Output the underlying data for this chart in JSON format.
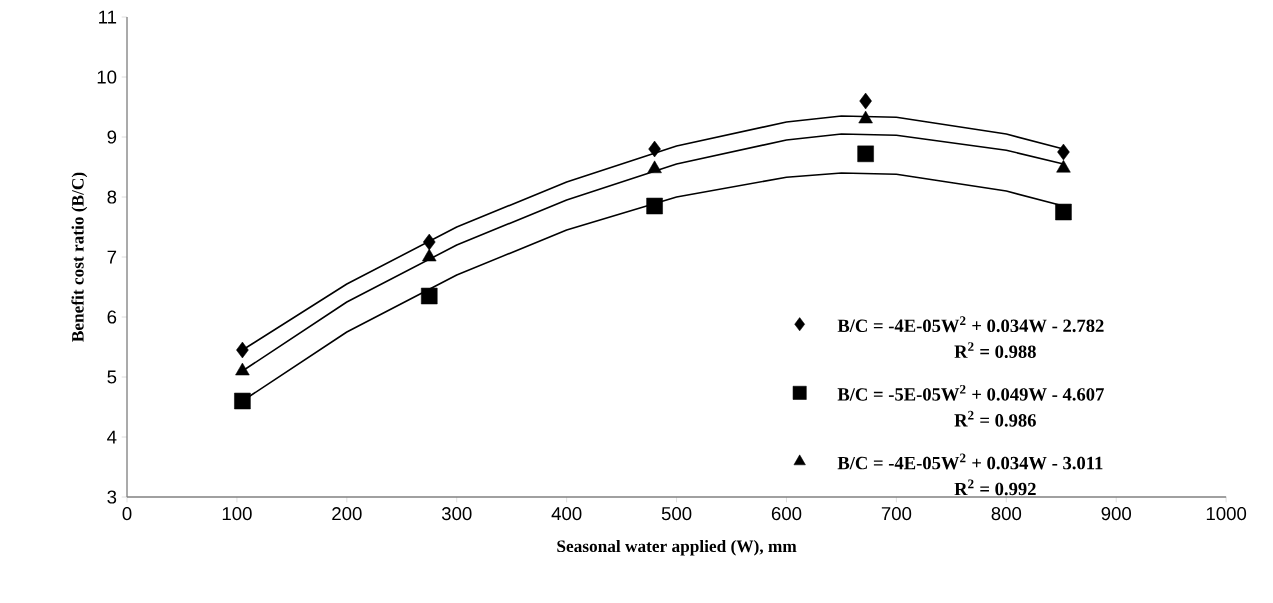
{
  "chart_data": {
    "type": "scatter",
    "xlabel": "Seasonal water applied (W), mm",
    "ylabel": "Benefit cost ratio (B/C)",
    "x": [
      105,
      275,
      480,
      672,
      852
    ],
    "series": [
      {
        "name": "B/C    = -4E-05W$^{2}$ + 0.034W - 2.782",
        "color": "#000000",
        "marker": "diamond",
        "values": [
          5.45,
          7.25,
          8.8,
          9.6,
          8.75
        ]
      },
      {
        "name": "B/C   = -5E-05W$^{2}$ + 0.049W - 4.607",
        "color": "#000000",
        "marker": "square",
        "values": [
          4.6,
          6.35,
          7.85,
          8.72,
          7.75
        ]
      },
      {
        "name": "B/C    = -4E-05W$^{2}$ + 0.034W - 3.011",
        "color": "#000000",
        "marker": "triangle",
        "values": [
          5.1,
          7.0,
          8.47,
          9.3,
          8.48
        ]
      },
      {
        "type": "line",
        "color": "#000000",
        "line_style": "solid",
        "x": [
          105,
          200,
          300,
          400,
          500,
          600,
          650,
          700,
          800,
          852
        ],
        "values": [
          5.45,
          6.55,
          7.5,
          8.25,
          8.85,
          9.25,
          9.35,
          9.33,
          9.05,
          8.8
        ]
      },
      {
        "type": "line",
        "color": "#000000",
        "line_style": "solid",
        "x": [
          105,
          200,
          300,
          400,
          500,
          600,
          650,
          700,
          800,
          852
        ],
        "values": [
          4.6,
          5.75,
          6.7,
          7.45,
          8.0,
          8.33,
          8.4,
          8.38,
          8.1,
          7.85
        ]
      },
      {
        "type": "line",
        "color": "#000000",
        "line_style": "solid",
        "x": [
          105,
          200,
          300,
          400,
          500,
          600,
          650,
          700,
          800,
          852
        ],
        "values": [
          5.1,
          6.25,
          7.2,
          7.95,
          8.55,
          8.95,
          9.05,
          9.03,
          8.78,
          8.55
        ]
      }
    ],
    "annotations": [
      "R$^{2}$ = 0.988",
      "R$^{2}$ = 0.986",
      "R$^{2}$ = 0.992"
    ],
    "xlim": [
      0,
      1000
    ],
    "xticks": [
      0,
      100,
      200,
      300,
      400,
      500,
      600,
      700,
      800,
      900,
      1000
    ],
    "ylim": [
      3,
      11
    ],
    "yticks": [
      3,
      4,
      5,
      6,
      7,
      8,
      9,
      10,
      11
    ],
    "legend": "bottom right"
  }
}
